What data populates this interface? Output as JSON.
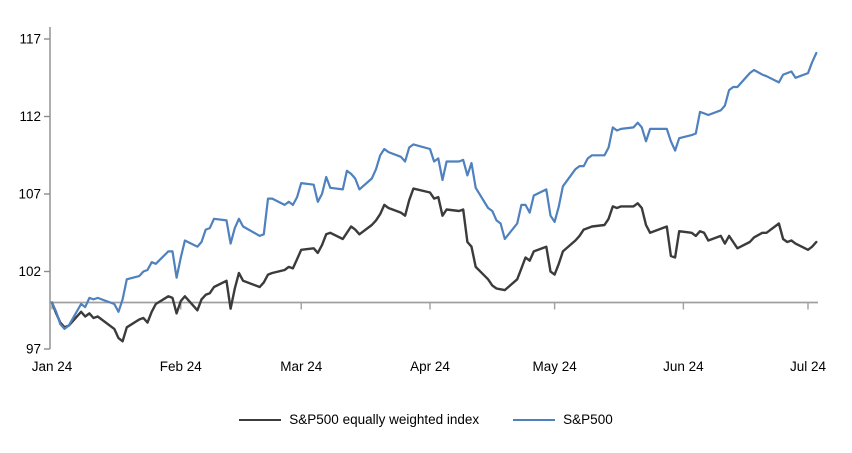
{
  "chart_data": {
    "type": "line",
    "title": "",
    "x_axis": {
      "tick_labels": [
        "Jan 24",
        "Feb 24",
        "Mar 24",
        "Apr 24",
        "May 24",
        "Jun 24",
        "Jul 24"
      ],
      "grid": false
    },
    "y_axis": {
      "ticks": [
        97,
        102,
        107,
        112,
        117
      ],
      "min": 97,
      "max": 117,
      "baseline_value": 100
    },
    "legend": [
      {
        "label": "S&P500 equally weighted index",
        "color": "#3B3B3B"
      },
      {
        "label": "S&P500",
        "color": "#4E81BD"
      }
    ],
    "colors": {
      "equal_weight_line": "#3B3B3B",
      "sp500_line": "#4E81BD",
      "axis_gray": "#8C8C8C",
      "baseline_gray": "#A0A0A0",
      "text": "#000000"
    },
    "dates": [
      "01-01",
      "01-02",
      "01-03",
      "01-04",
      "01-05",
      "01-08",
      "01-09",
      "01-10",
      "01-11",
      "01-12",
      "01-16",
      "01-17",
      "01-18",
      "01-19",
      "01-22",
      "01-23",
      "01-24",
      "01-25",
      "01-26",
      "01-29",
      "01-30",
      "01-31",
      "02-01",
      "02-02",
      "02-05",
      "02-06",
      "02-07",
      "02-08",
      "02-09",
      "02-12",
      "02-13",
      "02-14",
      "02-15",
      "02-16",
      "02-20",
      "02-21",
      "02-22",
      "02-23",
      "02-26",
      "02-27",
      "02-28",
      "02-29",
      "03-01",
      "03-04",
      "03-05",
      "03-06",
      "03-07",
      "03-08",
      "03-11",
      "03-12",
      "03-13",
      "03-14",
      "03-15",
      "03-18",
      "03-19",
      "03-20",
      "03-21",
      "03-22",
      "03-25",
      "03-26",
      "03-27",
      "03-28",
      "04-01",
      "04-02",
      "04-03",
      "04-04",
      "04-05",
      "04-08",
      "04-09",
      "04-10",
      "04-11",
      "04-12",
      "04-15",
      "04-16",
      "04-17",
      "04-18",
      "04-19",
      "04-22",
      "04-23",
      "04-24",
      "04-25",
      "04-26",
      "04-29",
      "04-30",
      "05-01",
      "05-02",
      "05-03",
      "05-06",
      "05-07",
      "05-08",
      "05-09",
      "05-10",
      "05-13",
      "05-14",
      "05-15",
      "05-16",
      "05-17",
      "05-20",
      "05-21",
      "05-22",
      "05-23",
      "05-24",
      "05-28",
      "05-29",
      "05-30",
      "05-31",
      "06-03",
      "06-04",
      "06-05",
      "06-06",
      "06-07",
      "06-10",
      "06-11",
      "06-12",
      "06-13",
      "06-14",
      "06-17",
      "06-18",
      "06-20",
      "06-21",
      "06-24",
      "06-25",
      "06-26",
      "06-27",
      "06-28",
      "07-01",
      "07-02",
      "07-03"
    ],
    "series": [
      {
        "name": "S&P500 equally weighted index",
        "color": "#3B3B3B",
        "values": [
          100.0,
          99.3,
          98.7,
          98.4,
          98.5,
          99.4,
          99.1,
          99.3,
          99.0,
          99.1,
          98.3,
          97.7,
          97.5,
          98.4,
          98.9,
          99.0,
          98.7,
          99.4,
          99.9,
          100.4,
          100.3,
          99.3,
          100.1,
          100.4,
          99.5,
          100.2,
          100.5,
          100.6,
          101.0,
          101.4,
          99.6,
          100.9,
          101.9,
          101.4,
          101.0,
          101.3,
          101.8,
          101.9,
          102.1,
          102.3,
          102.2,
          102.8,
          103.4,
          103.5,
          103.2,
          103.7,
          104.4,
          104.5,
          104.1,
          104.5,
          104.9,
          104.7,
          104.4,
          105.0,
          105.3,
          105.7,
          106.3,
          106.1,
          105.8,
          105.6,
          106.6,
          107.35,
          107.1,
          106.7,
          106.8,
          105.6,
          106.0,
          105.9,
          106.0,
          103.9,
          103.6,
          102.3,
          101.5,
          101.1,
          100.9,
          100.85,
          100.8,
          101.5,
          102.2,
          102.9,
          102.7,
          103.3,
          103.6,
          102.0,
          101.8,
          102.5,
          103.3,
          104.0,
          104.3,
          104.7,
          104.8,
          104.9,
          105.0,
          105.4,
          106.2,
          106.1,
          106.2,
          106.2,
          106.4,
          106.1,
          105.0,
          104.5,
          104.9,
          103.0,
          102.9,
          104.6,
          104.5,
          104.3,
          104.6,
          104.5,
          104.0,
          104.3,
          103.8,
          104.3,
          103.9,
          103.5,
          103.9,
          104.2,
          104.5,
          104.5,
          105.1,
          104.1,
          103.9,
          104.0,
          103.8,
          103.4,
          103.6,
          103.9
        ]
      },
      {
        "name": "S&P500",
        "color": "#4E81BD",
        "values": [
          100.0,
          99.4,
          98.6,
          98.3,
          98.5,
          99.9,
          99.7,
          100.3,
          100.2,
          100.3,
          99.9,
          99.4,
          100.2,
          101.5,
          101.7,
          102.0,
          102.1,
          102.6,
          102.5,
          103.3,
          103.3,
          101.6,
          102.9,
          104.0,
          103.6,
          103.9,
          104.7,
          104.8,
          105.4,
          105.3,
          103.8,
          104.8,
          105.4,
          104.9,
          104.3,
          104.4,
          106.7,
          106.7,
          106.3,
          106.5,
          106.3,
          106.8,
          107.7,
          107.6,
          106.5,
          107.0,
          108.1,
          107.4,
          107.3,
          108.5,
          108.3,
          108.0,
          107.3,
          108.0,
          108.6,
          109.5,
          109.9,
          109.7,
          109.4,
          109.1,
          110.0,
          110.2,
          109.9,
          109.1,
          109.3,
          107.9,
          109.1,
          109.1,
          109.2,
          108.2,
          109.0,
          107.4,
          106.1,
          105.9,
          105.3,
          105.1,
          104.1,
          105.1,
          106.3,
          106.3,
          105.8,
          106.9,
          107.3,
          105.6,
          105.2,
          106.2,
          107.5,
          108.6,
          108.8,
          108.8,
          109.3,
          109.5,
          109.5,
          110.0,
          111.3,
          111.1,
          111.2,
          111.3,
          111.6,
          111.3,
          110.4,
          111.2,
          111.2,
          110.4,
          109.8,
          110.6,
          110.8,
          110.9,
          112.3,
          112.2,
          112.1,
          112.4,
          112.7,
          113.7,
          113.9,
          113.9,
          114.8,
          115.0,
          114.7,
          114.6,
          114.2,
          114.7,
          114.8,
          114.9,
          114.5,
          114.8,
          115.5,
          116.1
        ]
      }
    ]
  }
}
